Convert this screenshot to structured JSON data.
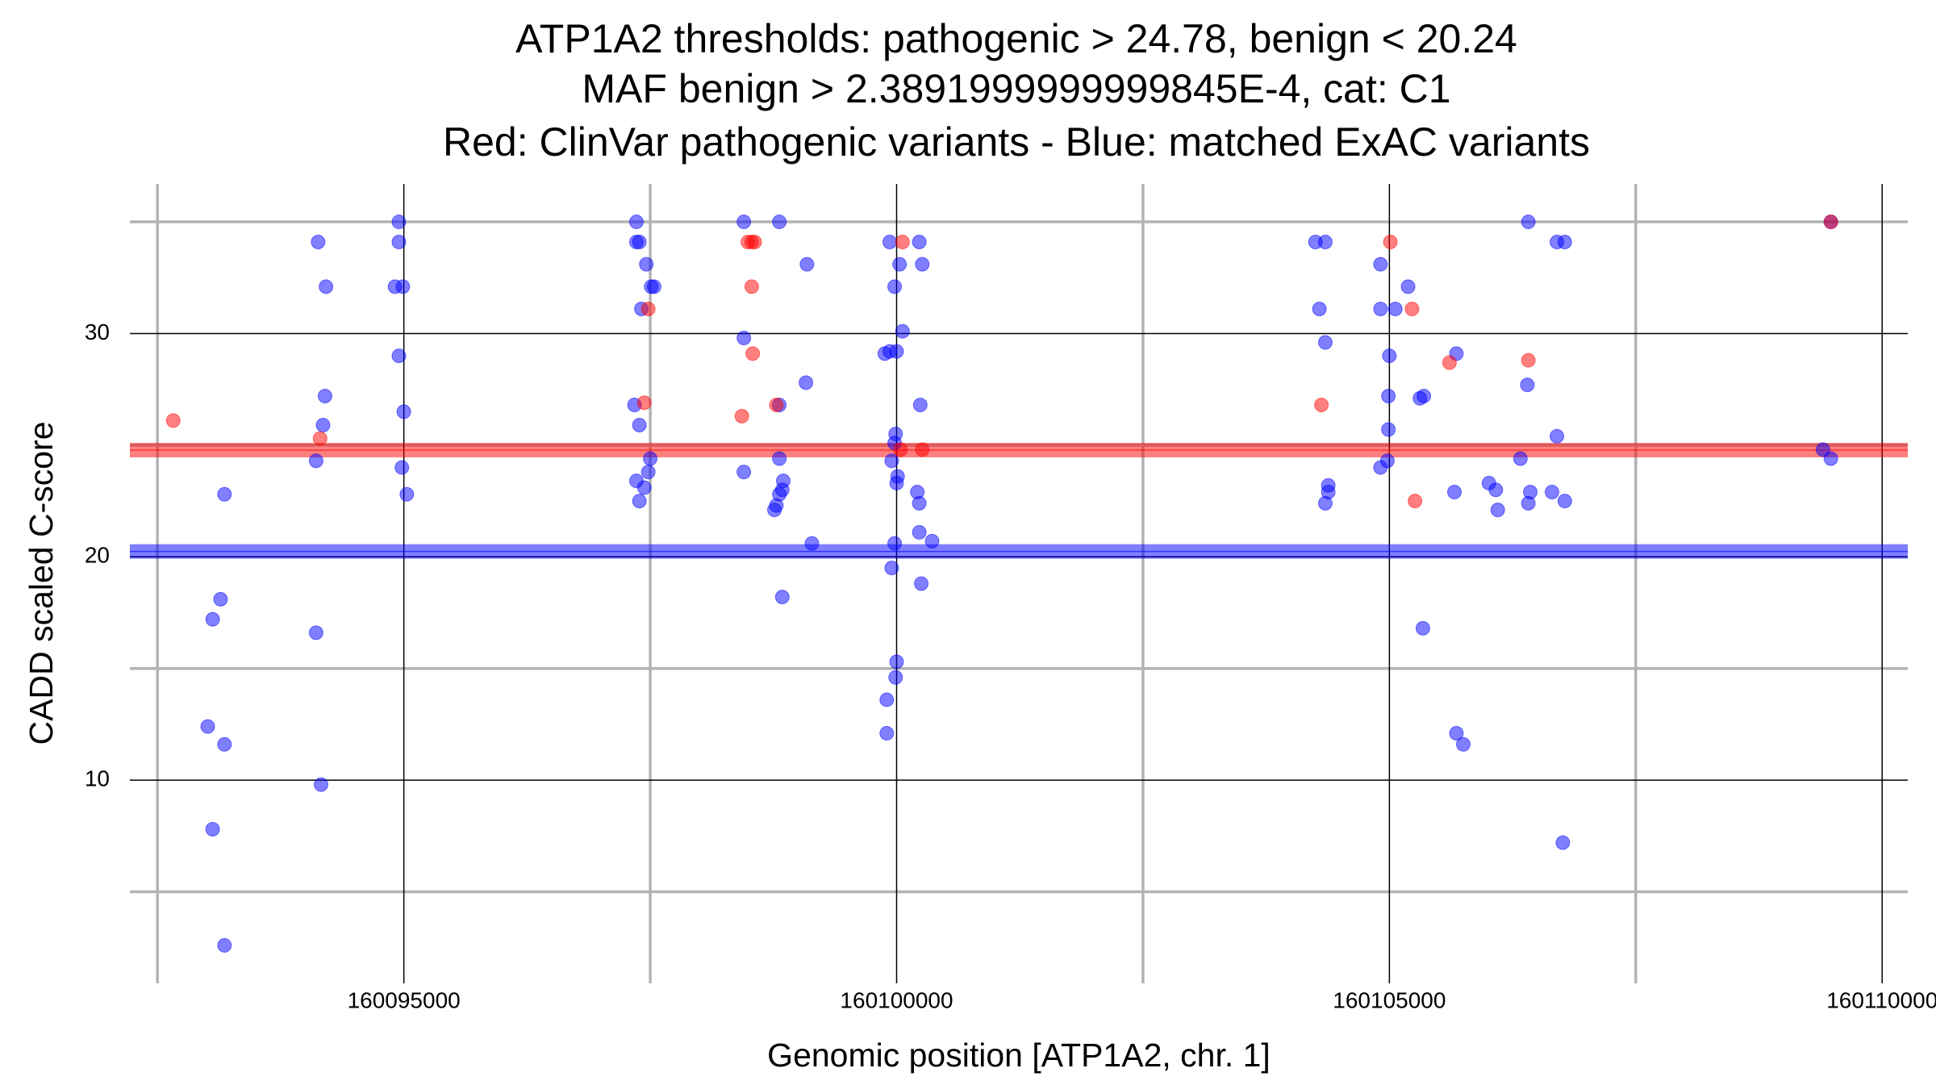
{
  "chart_data": {
    "type": "scatter",
    "title": [
      "ATP1A2 thresholds: pathogenic > 24.78, benign < 20.24",
      "MAF benign > 2.3891999999999845E-4, cat: C1",
      "Red: ClinVar pathogenic variants - Blue: matched ExAC variants"
    ],
    "x_label": "Genomic position [ATP1A2, chr. 1]",
    "y_label": "CADD scaled C-score",
    "xlim": [
      160092220,
      160110260
    ],
    "xticks": [
      160095000,
      160100000,
      160105000,
      160110000
    ],
    "ylim": [
      0.9,
      36.7
    ],
    "yticks": [
      10,
      20,
      30
    ],
    "grid": true,
    "thresholds": [
      {
        "value": 24.78,
        "color": "#ff0000"
      },
      {
        "value": 20.24,
        "color": "#0000ff"
      }
    ],
    "series": [
      {
        "color": "#0000ff",
        "x": [
          160093010,
          160093060,
          160093060,
          160093140,
          160093180,
          160093180,
          160093180,
          160094130,
          160094210,
          160094200,
          160094180,
          160094110,
          160094110,
          160094160,
          160094950,
          160094950,
          160094910,
          160094990,
          160094950,
          160095000,
          160094980,
          160095030,
          160097360,
          160097360,
          160097390,
          160097460,
          160097510,
          160097540,
          160097410,
          160097340,
          160097390,
          160097500,
          160097480,
          160097360,
          160097440,
          160097390,
          160098450,
          160098810,
          160098450,
          160098450,
          160099090,
          160099080,
          160098810,
          160098810,
          160098850,
          160098840,
          160098810,
          160098780,
          160098760,
          160099140,
          160098840,
          160099930,
          160100230,
          160100030,
          160100260,
          160099980,
          160100060,
          160099880,
          160099930,
          160100000,
          160099990,
          160099980,
          160100240,
          160099950,
          160100010,
          160100000,
          160100210,
          160100230,
          160100230,
          160100360,
          160099980,
          160099950,
          160100250,
          160100000,
          160099990,
          160099900,
          160099900,
          160104250,
          160104350,
          160104290,
          160104350,
          160104380,
          160104380,
          160104350,
          160104910,
          160104910,
          160105060,
          160105190,
          160105000,
          160104990,
          160104990,
          160104980,
          160104910,
          160105310,
          160105350,
          160105340,
          160105680,
          160105660,
          160105680,
          160105750,
          160106010,
          160106080,
          160106100,
          160106330,
          160106410,
          160106400,
          160106430,
          160106410,
          160106700,
          160106780,
          160106700,
          160106650,
          160106780,
          160106760,
          160109480,
          160109400,
          160109480
        ],
        "values": [
          12.4,
          17.2,
          7.8,
          18.1,
          22.8,
          11.6,
          2.6,
          34.1,
          32.1,
          27.2,
          25.9,
          24.3,
          16.6,
          9.8,
          35,
          34.1,
          32.1,
          32.1,
          29.0,
          26.5,
          24.0,
          22.8,
          35,
          34.1,
          34.1,
          33.1,
          32.1,
          32.1,
          31.1,
          26.8,
          25.9,
          24.4,
          23.8,
          23.4,
          23.1,
          22.5,
          35,
          35,
          29.8,
          23.8,
          33.1,
          27.8,
          26.8,
          24.4,
          23.4,
          23.0,
          22.8,
          22.3,
          22.1,
          20.6,
          18.2,
          34.1,
          34.1,
          33.1,
          33.1,
          32.1,
          30.1,
          29.1,
          29.2,
          29.2,
          25.5,
          25.1,
          26.8,
          24.3,
          23.6,
          23.3,
          22.9,
          22.4,
          21.1,
          20.7,
          20.6,
          19.5,
          18.8,
          15.3,
          14.6,
          13.6,
          12.1,
          34.1,
          34.1,
          31.1,
          29.6,
          23.2,
          22.9,
          22.4,
          33.1,
          31.1,
          31.1,
          32.1,
          29.0,
          27.2,
          25.7,
          24.3,
          24.0,
          27.1,
          27.2,
          16.8,
          29.1,
          22.9,
          12.1,
          11.6,
          23.3,
          23.0,
          22.1,
          24.4,
          35,
          27.7,
          22.9,
          22.4,
          34.1,
          34.1,
          25.4,
          22.9,
          22.5,
          7.2,
          35,
          24.8,
          24.4
        ]
      },
      {
        "color": "#ff0000",
        "x": [
          160092660,
          160094150,
          160097440,
          160097480,
          160098490,
          160098530,
          160098560,
          160098530,
          160098540,
          160098430,
          160098780,
          160100060,
          160100040,
          160100260,
          160104310,
          160105010,
          160105230,
          160105260,
          160105610,
          160106410,
          160109480
        ],
        "values": [
          26.1,
          25.3,
          26.9,
          31.1,
          34.1,
          34.1,
          34.1,
          32.1,
          29.1,
          26.3,
          26.8,
          34.1,
          24.8,
          24.8,
          26.8,
          34.1,
          31.1,
          22.5,
          28.7,
          28.8,
          35
        ]
      }
    ]
  }
}
